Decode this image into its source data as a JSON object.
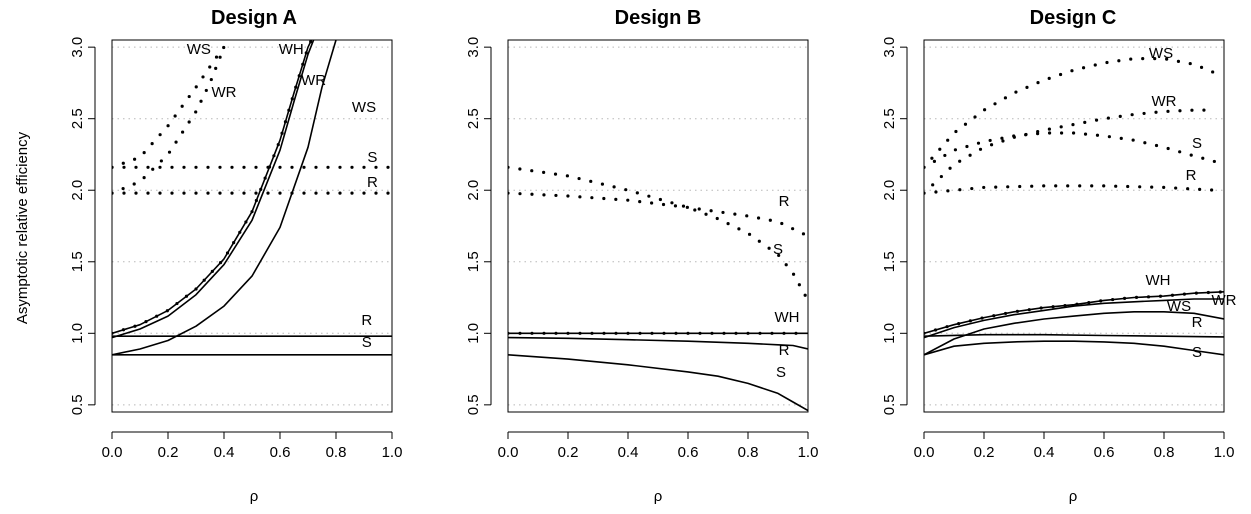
{
  "chart_data": [
    {
      "type": "line",
      "title": "Design A",
      "xlabel": "ρ",
      "ylabel": "Asymptotic relative efficiency",
      "xlim": [
        0,
        1
      ],
      "ylim": [
        0.45,
        3.05
      ],
      "xticks": [
        "0.0",
        "0.2",
        "0.4",
        "0.6",
        "0.8",
        "1.0"
      ],
      "yticks": [
        "0.5",
        "1.0",
        "1.5",
        "2.0",
        "2.5",
        "3.0"
      ],
      "grid": "horizontal dotted",
      "series": [
        {
          "name": "WH",
          "style": "solid",
          "x": [
            0,
            0.1,
            0.2,
            0.3,
            0.4,
            0.5,
            0.6,
            0.65,
            0.7,
            0.72,
            0.74
          ],
          "y": [
            1.0,
            1.06,
            1.16,
            1.31,
            1.52,
            1.85,
            2.35,
            2.68,
            3.0,
            3.08,
            3.1
          ]
        },
        {
          "name": "WH",
          "style": "dotted",
          "x": [
            0,
            0.1,
            0.2,
            0.3,
            0.4,
            0.5,
            0.6,
            0.65,
            0.7,
            0.72,
            0.74
          ],
          "y": [
            1.0,
            1.06,
            1.16,
            1.31,
            1.52,
            1.85,
            2.35,
            2.68,
            3.0,
            3.08,
            3.1
          ]
        },
        {
          "name": "WR",
          "style": "solid",
          "x": [
            0,
            0.1,
            0.2,
            0.3,
            0.4,
            0.5,
            0.6,
            0.65,
            0.7,
            0.72,
            0.74
          ],
          "y": [
            0.97,
            1.03,
            1.12,
            1.27,
            1.48,
            1.79,
            2.28,
            2.62,
            2.95,
            3.05,
            3.1
          ]
        },
        {
          "name": "WS",
          "style": "solid",
          "x": [
            0,
            0.1,
            0.2,
            0.3,
            0.4,
            0.5,
            0.6,
            0.7,
            0.75,
            0.8,
            0.82
          ],
          "y": [
            0.85,
            0.89,
            0.95,
            1.05,
            1.19,
            1.4,
            1.74,
            2.3,
            2.72,
            3.05,
            3.1
          ]
        },
        {
          "name": "R",
          "style": "solid",
          "x": [
            0,
            1
          ],
          "y": [
            0.98,
            0.98
          ]
        },
        {
          "name": "S",
          "style": "solid",
          "x": [
            0,
            1
          ],
          "y": [
            0.85,
            0.85
          ]
        },
        {
          "name": "WS",
          "style": "dotted",
          "x": [
            0,
            0.1,
            0.2,
            0.3,
            0.38,
            0.44
          ],
          "y": [
            2.16,
            2.23,
            2.45,
            2.72,
            2.95,
            3.1
          ]
        },
        {
          "name": "WR",
          "style": "dotted",
          "x": [
            0,
            0.1,
            0.2,
            0.3,
            0.35,
            0.4
          ],
          "y": [
            1.98,
            2.06,
            2.25,
            2.55,
            2.75,
            3.0
          ]
        },
        {
          "name": "S",
          "style": "dotted",
          "x": [
            0,
            1
          ],
          "y": [
            2.16,
            2.16
          ]
        },
        {
          "name": "R",
          "style": "dotted",
          "x": [
            0,
            1
          ],
          "y": [
            1.98,
            1.98
          ]
        }
      ]
    },
    {
      "type": "line",
      "title": "Design B",
      "xlabel": "ρ",
      "ylabel": "",
      "xlim": [
        0,
        1
      ],
      "ylim": [
        0.45,
        3.05
      ],
      "xticks": [
        "0.0",
        "0.2",
        "0.4",
        "0.6",
        "0.8",
        "1.0"
      ],
      "yticks": [
        "0.5",
        "1.0",
        "1.5",
        "2.0",
        "2.5",
        "3.0"
      ],
      "grid": "horizontal dotted",
      "series": [
        {
          "name": "WH",
          "style": "solid",
          "x": [
            0,
            1
          ],
          "y": [
            1.0,
            1.0
          ]
        },
        {
          "name": "WH",
          "style": "dotted",
          "x": [
            0,
            1
          ],
          "y": [
            1.0,
            1.0
          ]
        },
        {
          "name": "R",
          "style": "solid",
          "x": [
            0,
            0.2,
            0.4,
            0.6,
            0.8,
            0.9,
            0.95,
            1.0
          ],
          "y": [
            0.97,
            0.965,
            0.955,
            0.945,
            0.93,
            0.92,
            0.915,
            0.89
          ]
        },
        {
          "name": "S",
          "style": "solid",
          "x": [
            0,
            0.2,
            0.4,
            0.6,
            0.7,
            0.8,
            0.9,
            0.95,
            1.0
          ],
          "y": [
            0.85,
            0.82,
            0.78,
            0.73,
            0.7,
            0.65,
            0.58,
            0.52,
            0.46
          ]
        },
        {
          "name": "R",
          "style": "dotted",
          "x": [
            0,
            0.2,
            0.4,
            0.6,
            0.8,
            0.9,
            1.0
          ],
          "y": [
            1.98,
            1.96,
            1.93,
            1.88,
            1.82,
            1.78,
            1.68
          ]
        },
        {
          "name": "S",
          "style": "dotted",
          "x": [
            0,
            0.2,
            0.4,
            0.6,
            0.7,
            0.8,
            0.9,
            0.95,
            1.0
          ],
          "y": [
            2.16,
            2.1,
            2.0,
            1.88,
            1.8,
            1.7,
            1.55,
            1.42,
            1.23
          ]
        }
      ]
    },
    {
      "type": "line",
      "title": "Design C",
      "xlabel": "ρ",
      "ylabel": "",
      "xlim": [
        0,
        1
      ],
      "ylim": [
        0.45,
        3.05
      ],
      "xticks": [
        "0.0",
        "0.2",
        "0.4",
        "0.6",
        "0.8",
        "1.0"
      ],
      "yticks": [
        "0.5",
        "1.0",
        "1.5",
        "2.0",
        "2.5",
        "3.0"
      ],
      "grid": "horizontal dotted",
      "series": [
        {
          "name": "WH",
          "style": "solid",
          "x": [
            0,
            0.1,
            0.2,
            0.3,
            0.4,
            0.5,
            0.6,
            0.7,
            0.8,
            0.9,
            1.0
          ],
          "y": [
            1.0,
            1.06,
            1.11,
            1.15,
            1.18,
            1.2,
            1.23,
            1.25,
            1.26,
            1.28,
            1.29
          ]
        },
        {
          "name": "WH",
          "style": "dotted",
          "x": [
            0,
            0.1,
            0.2,
            0.3,
            0.4,
            0.5,
            0.6,
            0.7,
            0.8,
            0.9,
            1.0
          ],
          "y": [
            1.0,
            1.06,
            1.11,
            1.15,
            1.18,
            1.2,
            1.23,
            1.25,
            1.26,
            1.28,
            1.29
          ]
        },
        {
          "name": "WR",
          "style": "solid",
          "x": [
            0,
            0.1,
            0.2,
            0.3,
            0.4,
            0.5,
            0.6,
            0.7,
            0.8,
            0.9,
            1.0
          ],
          "y": [
            0.97,
            1.04,
            1.09,
            1.13,
            1.16,
            1.19,
            1.21,
            1.22,
            1.23,
            1.24,
            1.24
          ]
        },
        {
          "name": "WS",
          "style": "solid",
          "x": [
            0,
            0.1,
            0.2,
            0.3,
            0.4,
            0.5,
            0.6,
            0.7,
            0.8,
            0.9,
            1.0
          ],
          "y": [
            0.85,
            0.96,
            1.03,
            1.07,
            1.1,
            1.12,
            1.14,
            1.15,
            1.15,
            1.14,
            1.1
          ]
        },
        {
          "name": "R",
          "style": "solid",
          "x": [
            0,
            0.2,
            0.4,
            0.6,
            0.8,
            1.0
          ],
          "y": [
            0.98,
            0.99,
            0.99,
            0.985,
            0.98,
            0.975
          ]
        },
        {
          "name": "S",
          "style": "solid",
          "x": [
            0,
            0.1,
            0.2,
            0.3,
            0.4,
            0.5,
            0.6,
            0.7,
            0.8,
            0.9,
            1.0
          ],
          "y": [
            0.85,
            0.91,
            0.93,
            0.94,
            0.945,
            0.945,
            0.94,
            0.93,
            0.91,
            0.88,
            0.85
          ]
        },
        {
          "name": "WS",
          "style": "dotted",
          "x": [
            0,
            0.1,
            0.2,
            0.3,
            0.4,
            0.5,
            0.6,
            0.7,
            0.8,
            0.9,
            0.97
          ],
          "y": [
            2.16,
            2.4,
            2.56,
            2.68,
            2.77,
            2.84,
            2.89,
            2.92,
            2.92,
            2.88,
            2.82
          ]
        },
        {
          "name": "WR",
          "style": "dotted",
          "x": [
            0,
            0.1,
            0.2,
            0.3,
            0.4,
            0.5,
            0.6,
            0.7,
            0.8,
            0.9,
            0.97
          ],
          "y": [
            1.98,
            2.18,
            2.3,
            2.37,
            2.42,
            2.46,
            2.5,
            2.53,
            2.55,
            2.56,
            2.56
          ]
        },
        {
          "name": "S",
          "style": "dotted",
          "x": [
            0,
            0.1,
            0.2,
            0.3,
            0.4,
            0.5,
            0.6,
            0.7,
            0.8,
            0.9,
            0.97
          ],
          "y": [
            2.16,
            2.28,
            2.34,
            2.38,
            2.4,
            2.4,
            2.38,
            2.35,
            2.3,
            2.24,
            2.2
          ]
        },
        {
          "name": "R",
          "style": "dotted",
          "x": [
            0,
            0.2,
            0.4,
            0.6,
            0.8,
            0.97
          ],
          "y": [
            1.98,
            2.02,
            2.03,
            2.03,
            2.02,
            2.0
          ]
        }
      ]
    }
  ],
  "labels": [
    [
      "WS",
      "WH",
      "WR",
      "WR",
      "WS",
      "S",
      "R",
      "R",
      "S"
    ],
    [
      "R",
      "S",
      "WH",
      "R",
      "S"
    ],
    [
      "WS",
      "WR",
      "S",
      "R",
      "WH",
      "WR",
      "WS",
      "R",
      "S"
    ]
  ]
}
